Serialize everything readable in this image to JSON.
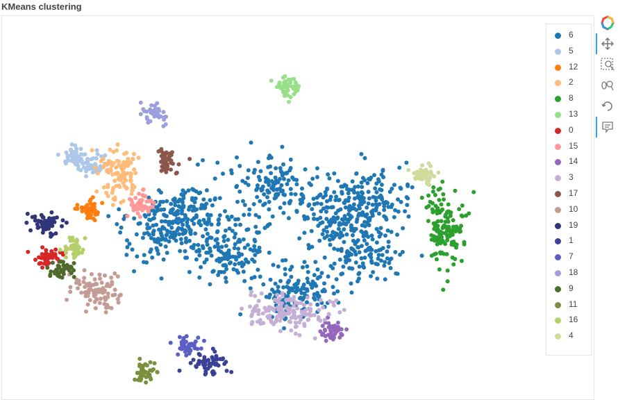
{
  "title": "KMeans clustering",
  "toolbar": {
    "icons": [
      "bokeh-logo-icon",
      "pan-icon",
      "box-zoom-icon",
      "wheel-zoom-icon",
      "reset-icon",
      "hover-icon"
    ]
  },
  "chart_data": {
    "type": "scatter",
    "title": "KMeans clustering",
    "xlabel": "",
    "ylabel": "",
    "axes_visible": false,
    "grid": false,
    "legend_placement": "right",
    "legend": [
      "6",
      "5",
      "12",
      "2",
      "8",
      "13",
      "0",
      "15",
      "14",
      "3",
      "17",
      "10",
      "19",
      "1",
      "7",
      "18",
      "9",
      "11",
      "16",
      "4"
    ],
    "colors": {
      "6": "#1f77b4",
      "5": "#aec7e8",
      "12": "#ff7f0e",
      "2": "#ffbb78",
      "8": "#2ca02c",
      "13": "#98df8a",
      "0": "#d62728",
      "15": "#ff9896",
      "14": "#9467bd",
      "3": "#c5b0d5",
      "17": "#8c564b",
      "10": "#c49c94",
      "19": "#31357a",
      "1": "#3b4196",
      "7": "#5a5fc4",
      "18": "#9c9ede",
      "9": "#4f6a2a",
      "11": "#7b8f3f",
      "16": "#b5cf6b",
      "4": "#cedb9c"
    },
    "series": [
      {
        "name": "6",
        "x": [
          0,
          -30,
          40,
          -60,
          60,
          -80,
          15,
          70
        ],
        "y": [
          20,
          -25,
          5,
          0,
          -30,
          -10,
          -55,
          10
        ]
      },
      {
        "name": "5",
        "x": [
          -140,
          -128
        ],
        "y": [
          45,
          38
        ]
      },
      {
        "name": "12",
        "x": [
          -130
        ],
        "y": [
          5
        ]
      },
      {
        "name": "2",
        "x": [
          -110
        ],
        "y": [
          30
        ]
      },
      {
        "name": "8",
        "x": [
          120
        ],
        "y": [
          -10
        ]
      },
      {
        "name": "13",
        "x": [
          10
        ],
        "y": [
          95
        ]
      },
      {
        "name": "0",
        "x": [
          -160
        ],
        "y": [
          -30
        ]
      },
      {
        "name": "15",
        "x": [
          -95
        ],
        "y": [
          8
        ]
      },
      {
        "name": "14",
        "x": [
          40
        ],
        "y": [
          -85
        ]
      },
      {
        "name": "3",
        "x": [
          10
        ],
        "y": [
          -70
        ]
      },
      {
        "name": "17",
        "x": [
          -75
        ],
        "y": [
          40
        ]
      },
      {
        "name": "10",
        "x": [
          -125
        ],
        "y": [
          -55
        ]
      },
      {
        "name": "19",
        "x": [
          -160
        ],
        "y": [
          -5
        ]
      },
      {
        "name": "1",
        "x": [
          -45
        ],
        "y": [
          -110
        ]
      },
      {
        "name": "7",
        "x": [
          -60
        ],
        "y": [
          -95
        ]
      },
      {
        "name": "18",
        "x": [
          -85
        ],
        "y": [
          75
        ]
      },
      {
        "name": "9",
        "x": [
          -150
        ],
        "y": [
          -40
        ]
      },
      {
        "name": "11",
        "x": [
          -90
        ],
        "y": [
          -115
        ]
      },
      {
        "name": "16",
        "x": [
          -140
        ],
        "y": [
          -25
        ]
      },
      {
        "name": "4",
        "x": [
          105
        ],
        "y": [
          30
        ]
      }
    ]
  }
}
